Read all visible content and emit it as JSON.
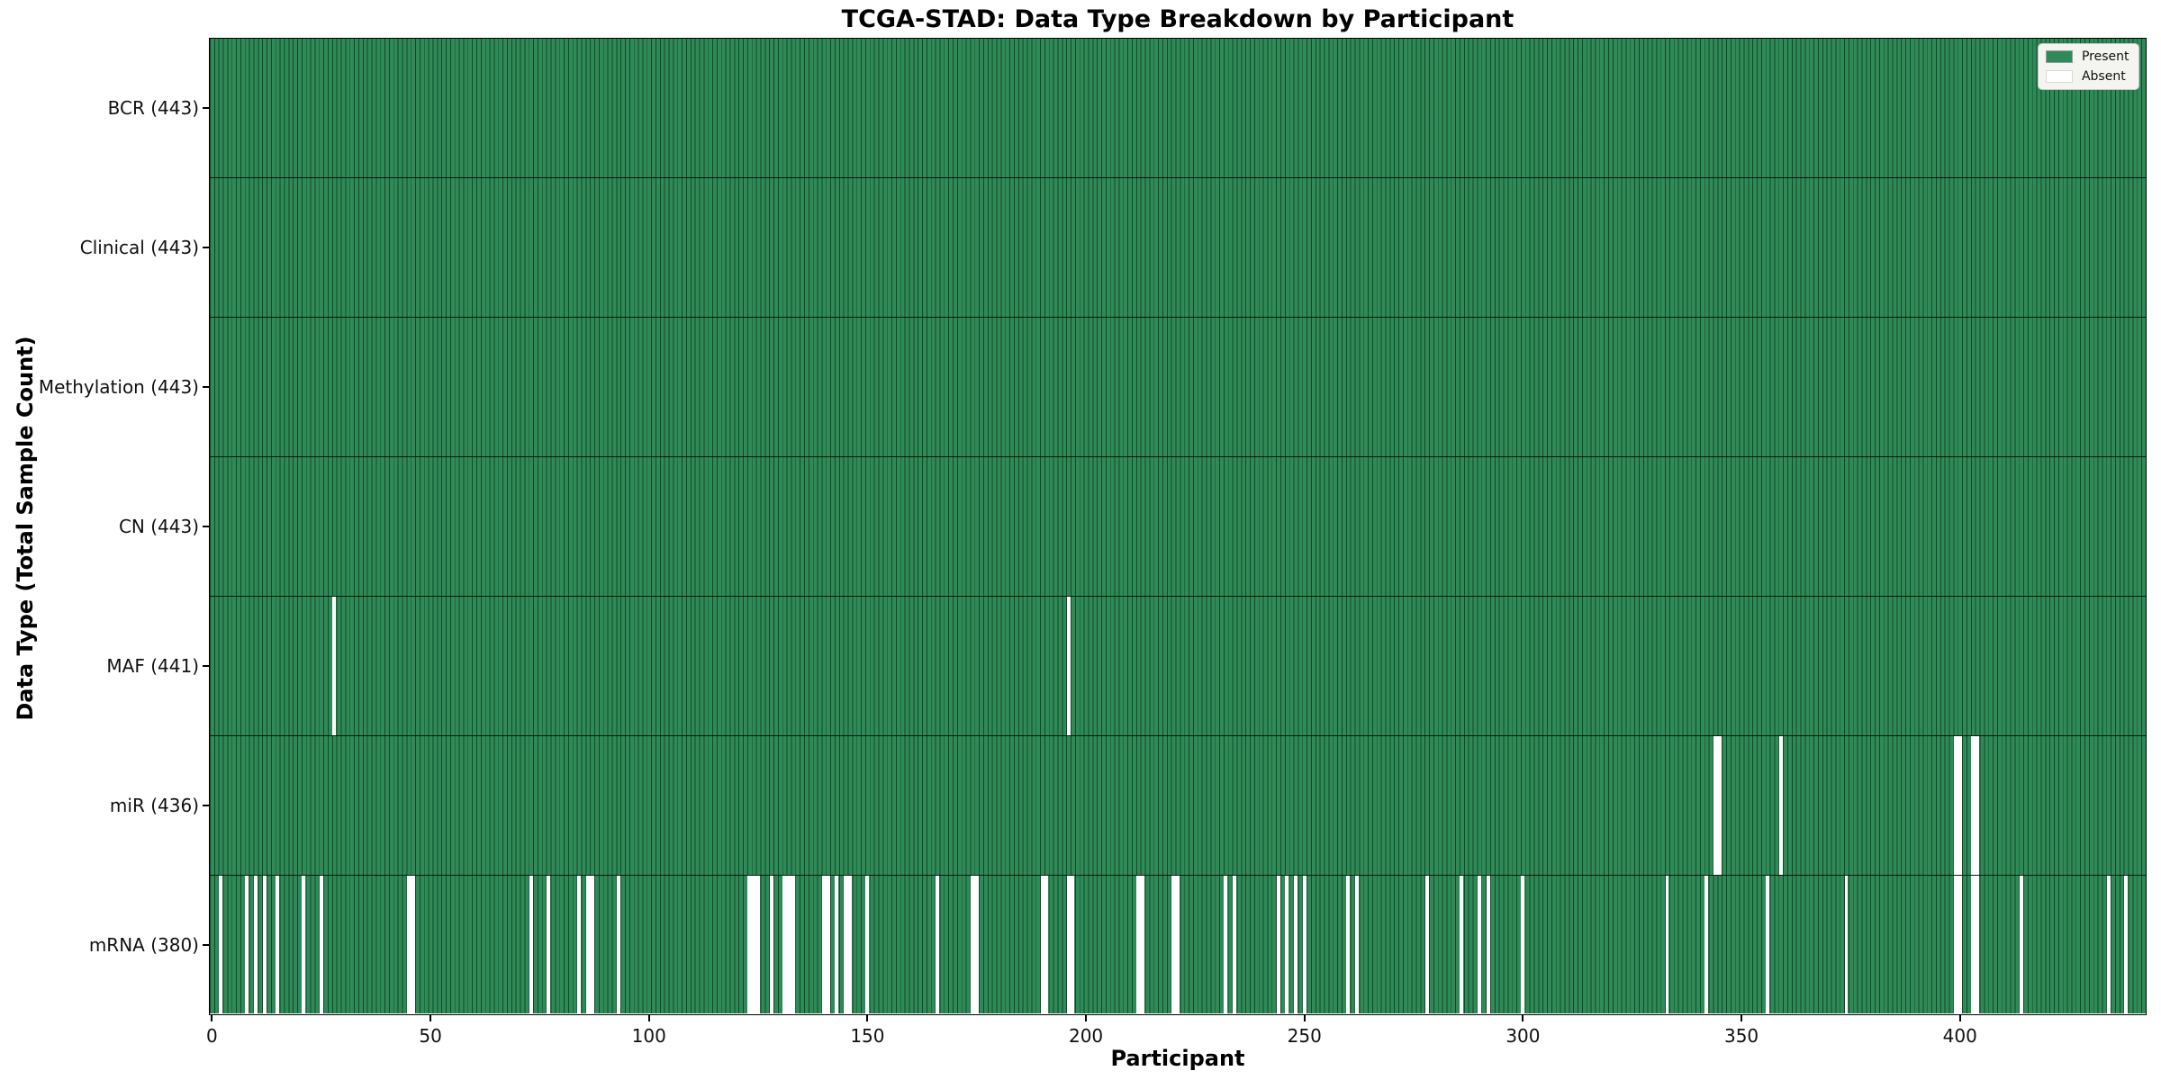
{
  "figure": {
    "title": "TCGA-STAD: Data Type Breakdown by Participant",
    "xlabel": "Participant",
    "ylabel": "Data Type (Total Sample Count)"
  },
  "legend": {
    "items": [
      {
        "label": "Present",
        "color": "#2e8b57"
      },
      {
        "label": "Absent",
        "color": "#ffffff"
      }
    ]
  },
  "chart_data": {
    "type": "heatmap",
    "title": "TCGA-STAD: Data Type Breakdown by Participant",
    "xlabel": "Participant",
    "ylabel": "Data Type (Total Sample Count)",
    "n_participants": 443,
    "x_ticks": [
      0,
      50,
      100,
      150,
      200,
      250,
      300,
      350,
      400
    ],
    "present_color": "#2e8b57",
    "absent_color": "#ffffff",
    "legend_position": "upper right",
    "grid": false,
    "rows": [
      {
        "label": "BCR",
        "count": 443,
        "tick_label": "BCR (443)",
        "missing_participants": []
      },
      {
        "label": "Clinical",
        "count": 443,
        "tick_label": "Clinical (443)",
        "missing_participants": []
      },
      {
        "label": "Methylation",
        "count": 443,
        "tick_label": "Methylation (443)",
        "missing_participants": []
      },
      {
        "label": "CN",
        "count": 443,
        "tick_label": "CN (443)",
        "missing_participants": []
      },
      {
        "label": "MAF",
        "count": 441,
        "tick_label": "MAF (441)",
        "missing_participants": [
          28,
          196
        ]
      },
      {
        "label": "miR",
        "count": 436,
        "tick_label": "miR (436)",
        "missing_participants": [
          344,
          345,
          359,
          399,
          400,
          403,
          404
        ]
      },
      {
        "label": "mRNA",
        "count": 380,
        "tick_label": "mRNA (380)",
        "missing_participants": [
          2,
          8,
          10,
          12,
          15,
          21,
          25,
          45,
          46,
          73,
          77,
          84,
          86,
          87,
          93,
          123,
          124,
          125,
          128,
          131,
          132,
          133,
          140,
          141,
          143,
          145,
          146,
          150,
          166,
          174,
          175,
          190,
          191,
          196,
          197,
          212,
          213,
          220,
          221,
          232,
          234,
          244,
          246,
          248,
          250,
          260,
          262,
          278,
          286,
          290,
          292,
          300,
          333,
          342,
          356,
          374,
          399,
          400,
          403,
          404,
          414,
          434,
          438
        ]
      }
    ]
  }
}
